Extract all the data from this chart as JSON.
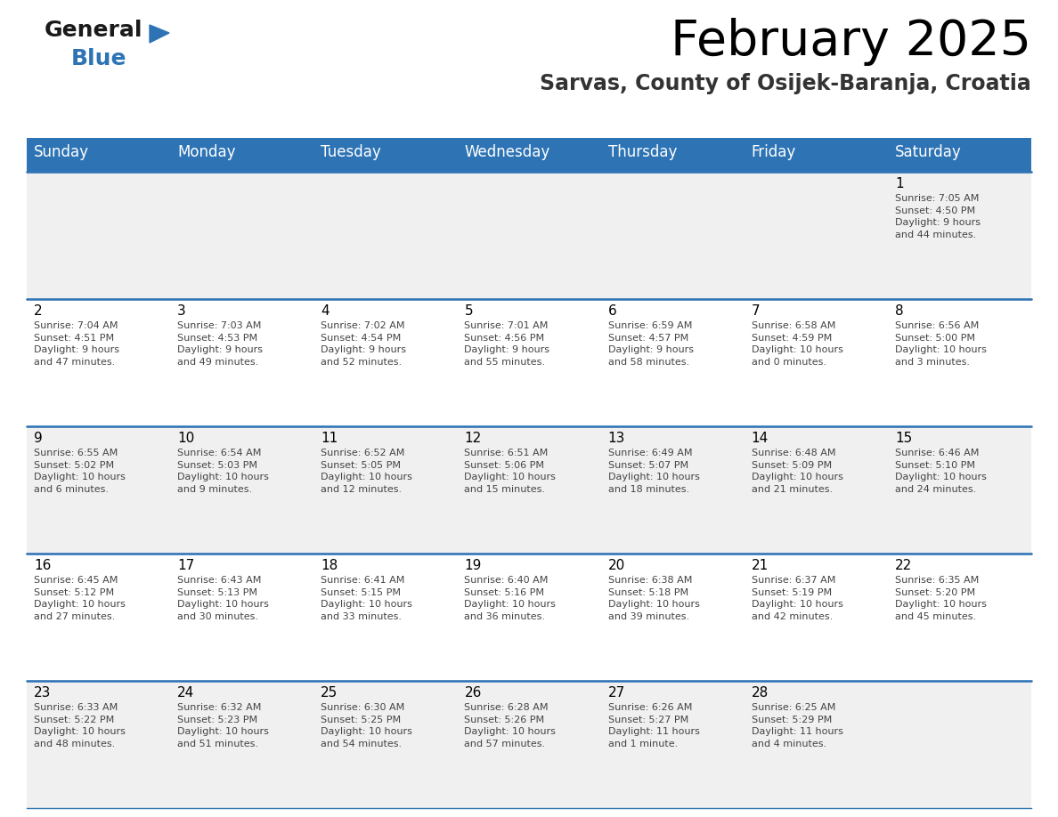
{
  "title": "February 2025",
  "subtitle": "Sarvas, County of Osijek-Baranja, Croatia",
  "header_bg_color": "#2E74B5",
  "header_text_color": "#FFFFFF",
  "day_names": [
    "Sunday",
    "Monday",
    "Tuesday",
    "Wednesday",
    "Thursday",
    "Friday",
    "Saturday"
  ],
  "cell_bg_even": "#F0F0F0",
  "cell_bg_odd": "#FFFFFF",
  "cell_border_color": "#2E74B5",
  "day_num_color": "#000000",
  "day_text_color": "#444444",
  "logo_general_color": "#1A1A1A",
  "logo_blue_color": "#2E74B5",
  "title_fontsize": 40,
  "subtitle_fontsize": 17,
  "header_fontsize": 12,
  "day_num_fontsize": 11,
  "cell_text_fontsize": 8,
  "weeks": [
    [
      {
        "day": null,
        "text": ""
      },
      {
        "day": null,
        "text": ""
      },
      {
        "day": null,
        "text": ""
      },
      {
        "day": null,
        "text": ""
      },
      {
        "day": null,
        "text": ""
      },
      {
        "day": null,
        "text": ""
      },
      {
        "day": 1,
        "text": "Sunrise: 7:05 AM\nSunset: 4:50 PM\nDaylight: 9 hours\nand 44 minutes."
      }
    ],
    [
      {
        "day": 2,
        "text": "Sunrise: 7:04 AM\nSunset: 4:51 PM\nDaylight: 9 hours\nand 47 minutes."
      },
      {
        "day": 3,
        "text": "Sunrise: 7:03 AM\nSunset: 4:53 PM\nDaylight: 9 hours\nand 49 minutes."
      },
      {
        "day": 4,
        "text": "Sunrise: 7:02 AM\nSunset: 4:54 PM\nDaylight: 9 hours\nand 52 minutes."
      },
      {
        "day": 5,
        "text": "Sunrise: 7:01 AM\nSunset: 4:56 PM\nDaylight: 9 hours\nand 55 minutes."
      },
      {
        "day": 6,
        "text": "Sunrise: 6:59 AM\nSunset: 4:57 PM\nDaylight: 9 hours\nand 58 minutes."
      },
      {
        "day": 7,
        "text": "Sunrise: 6:58 AM\nSunset: 4:59 PM\nDaylight: 10 hours\nand 0 minutes."
      },
      {
        "day": 8,
        "text": "Sunrise: 6:56 AM\nSunset: 5:00 PM\nDaylight: 10 hours\nand 3 minutes."
      }
    ],
    [
      {
        "day": 9,
        "text": "Sunrise: 6:55 AM\nSunset: 5:02 PM\nDaylight: 10 hours\nand 6 minutes."
      },
      {
        "day": 10,
        "text": "Sunrise: 6:54 AM\nSunset: 5:03 PM\nDaylight: 10 hours\nand 9 minutes."
      },
      {
        "day": 11,
        "text": "Sunrise: 6:52 AM\nSunset: 5:05 PM\nDaylight: 10 hours\nand 12 minutes."
      },
      {
        "day": 12,
        "text": "Sunrise: 6:51 AM\nSunset: 5:06 PM\nDaylight: 10 hours\nand 15 minutes."
      },
      {
        "day": 13,
        "text": "Sunrise: 6:49 AM\nSunset: 5:07 PM\nDaylight: 10 hours\nand 18 minutes."
      },
      {
        "day": 14,
        "text": "Sunrise: 6:48 AM\nSunset: 5:09 PM\nDaylight: 10 hours\nand 21 minutes."
      },
      {
        "day": 15,
        "text": "Sunrise: 6:46 AM\nSunset: 5:10 PM\nDaylight: 10 hours\nand 24 minutes."
      }
    ],
    [
      {
        "day": 16,
        "text": "Sunrise: 6:45 AM\nSunset: 5:12 PM\nDaylight: 10 hours\nand 27 minutes."
      },
      {
        "day": 17,
        "text": "Sunrise: 6:43 AM\nSunset: 5:13 PM\nDaylight: 10 hours\nand 30 minutes."
      },
      {
        "day": 18,
        "text": "Sunrise: 6:41 AM\nSunset: 5:15 PM\nDaylight: 10 hours\nand 33 minutes."
      },
      {
        "day": 19,
        "text": "Sunrise: 6:40 AM\nSunset: 5:16 PM\nDaylight: 10 hours\nand 36 minutes."
      },
      {
        "day": 20,
        "text": "Sunrise: 6:38 AM\nSunset: 5:18 PM\nDaylight: 10 hours\nand 39 minutes."
      },
      {
        "day": 21,
        "text": "Sunrise: 6:37 AM\nSunset: 5:19 PM\nDaylight: 10 hours\nand 42 minutes."
      },
      {
        "day": 22,
        "text": "Sunrise: 6:35 AM\nSunset: 5:20 PM\nDaylight: 10 hours\nand 45 minutes."
      }
    ],
    [
      {
        "day": 23,
        "text": "Sunrise: 6:33 AM\nSunset: 5:22 PM\nDaylight: 10 hours\nand 48 minutes."
      },
      {
        "day": 24,
        "text": "Sunrise: 6:32 AM\nSunset: 5:23 PM\nDaylight: 10 hours\nand 51 minutes."
      },
      {
        "day": 25,
        "text": "Sunrise: 6:30 AM\nSunset: 5:25 PM\nDaylight: 10 hours\nand 54 minutes."
      },
      {
        "day": 26,
        "text": "Sunrise: 6:28 AM\nSunset: 5:26 PM\nDaylight: 10 hours\nand 57 minutes."
      },
      {
        "day": 27,
        "text": "Sunrise: 6:26 AM\nSunset: 5:27 PM\nDaylight: 11 hours\nand 1 minute."
      },
      {
        "day": 28,
        "text": "Sunrise: 6:25 AM\nSunset: 5:29 PM\nDaylight: 11 hours\nand 4 minutes."
      },
      {
        "day": null,
        "text": ""
      }
    ]
  ]
}
